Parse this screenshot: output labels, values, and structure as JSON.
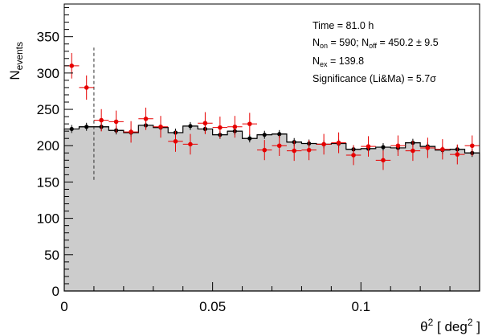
{
  "chart_data": {
    "type": "histogram",
    "title": "",
    "xlabel": {
      "base": "θ",
      "sup": "2",
      "unit_pre": " [ deg",
      "unit_sup": "2",
      "unit_post": " ]"
    },
    "ylabel": {
      "base": "N",
      "sub": "events"
    },
    "xlim": [
      0,
      0.14
    ],
    "ylim": [
      0,
      395
    ],
    "x_ticks": [
      0,
      0.05,
      0.1
    ],
    "x_tick_labels": [
      "0",
      "0.05",
      "0.1"
    ],
    "y_ticks": [
      0,
      50,
      100,
      150,
      200,
      250,
      300,
      350
    ],
    "y_tick_labels": [
      "0",
      "50",
      "100",
      "150",
      "200",
      "250",
      "300",
      "350"
    ],
    "bin_width": 0.005,
    "off_histogram": [
      223,
      226,
      226,
      221,
      218,
      228,
      225,
      218,
      227,
      223,
      215,
      220,
      210,
      215,
      216,
      205,
      203,
      202,
      203,
      195,
      196,
      198,
      197,
      204,
      199,
      194,
      195,
      190
    ],
    "series": [
      {
        "name": "on",
        "color": "#e60000",
        "x": [
          0.0025,
          0.0075,
          0.0125,
          0.0175,
          0.0225,
          0.0275,
          0.0325,
          0.0375,
          0.0425,
          0.0475,
          0.0525,
          0.0575,
          0.0625,
          0.0675,
          0.0725,
          0.0775,
          0.0825,
          0.0875,
          0.0925,
          0.0975,
          0.1025,
          0.1075,
          0.1125,
          0.1175,
          0.1225,
          0.1275,
          0.1325,
          0.1375
        ],
        "y": [
          310,
          280,
          235,
          233,
          219,
          237,
          226,
          206,
          202,
          231,
          225,
          226,
          230,
          194,
          200,
          193,
          194,
          202,
          204,
          187,
          199,
          180,
          200,
          193,
          197,
          195,
          188,
          200
        ],
        "err": [
          17.6,
          16.7,
          15.3,
          15.3,
          14.8,
          15.4,
          15.0,
          14.4,
          14.2,
          15.2,
          15.0,
          15.0,
          15.2,
          13.9,
          14.1,
          13.9,
          13.9,
          14.2,
          14.3,
          13.7,
          14.1,
          13.4,
          14.1,
          13.9,
          14.0,
          14.0,
          13.7,
          14.1
        ]
      },
      {
        "name": "off",
        "color": "#000000",
        "x": [
          0.0025,
          0.0075,
          0.0125,
          0.0175,
          0.0225,
          0.0275,
          0.0325,
          0.0375,
          0.0425,
          0.0475,
          0.0525,
          0.0575,
          0.0625,
          0.0675,
          0.0725,
          0.0775,
          0.0825,
          0.0875,
          0.0925,
          0.0975,
          0.1025,
          0.1075,
          0.1125,
          0.1175,
          0.1225,
          0.1275,
          0.1325,
          0.1375
        ],
        "y": [
          223,
          226,
          226,
          221,
          218,
          228,
          225,
          218,
          227,
          223,
          215,
          220,
          210,
          215,
          216,
          205,
          203,
          202,
          203,
          195,
          196,
          198,
          197,
          204,
          199,
          194,
          195,
          190
        ],
        "err": [
          5.5,
          5.5,
          5.5,
          5.5,
          5.5,
          5.5,
          5.5,
          5.5,
          5.5,
          5.5,
          5.5,
          5.5,
          5.5,
          5.5,
          5.5,
          5.5,
          5.5,
          5.5,
          5.5,
          5.5,
          5.5,
          5.5,
          5.5,
          5.5,
          5.5,
          5.5,
          5.5,
          5.5
        ]
      }
    ],
    "cut_line": {
      "x": 0.01,
      "y_range": [
        153,
        335
      ]
    },
    "stats": {
      "time": "Time = 81.0 h",
      "non_prefix": "N",
      "non_sub": "on",
      "non_mid": " = 590; N",
      "noff_sub": "off",
      "noff_value": " = 450.2 ±  9.5",
      "nex_prefix": "N",
      "nex_sub": "ex",
      "nex_value": " = 139.8",
      "significance": "Significance (Li&Ma) =  5.7σ"
    },
    "grid": false,
    "legend": "none",
    "colors": {
      "histogram_fill": "#cccccc",
      "on_points": "#e60000",
      "off_points": "#000000"
    }
  }
}
